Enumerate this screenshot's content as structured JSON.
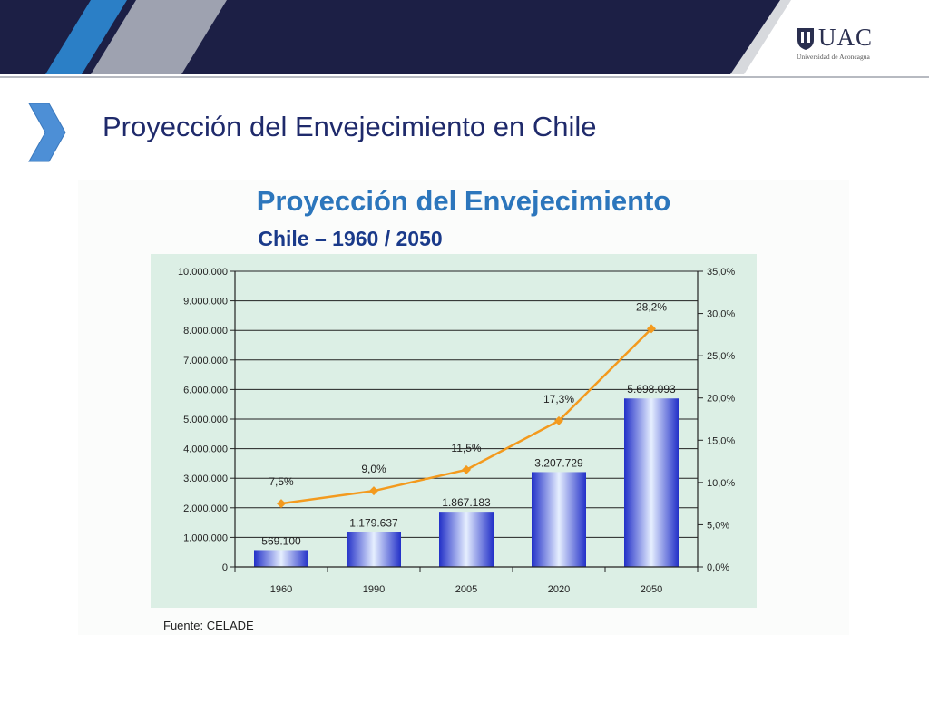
{
  "header": {
    "logo_text": "UAC",
    "logo_subtitle": "Universidad de Aconcagua",
    "colors": {
      "navy": "#1c1f45",
      "blue": "#2b7fc6",
      "grey": "#c9cbcf"
    }
  },
  "slide": {
    "title": "Proyección del Envejecimiento en Chile"
  },
  "figure": {
    "source": "Fuente:  CELADE"
  },
  "chart_data": {
    "type": "bar",
    "title": "Proyección del Envejecimiento",
    "subtitle": "Chile – 1960 / 2050",
    "categories": [
      "1960",
      "1990",
      "2005",
      "2020",
      "2050"
    ],
    "series": [
      {
        "type": "bar",
        "values": [
          569100,
          1179637,
          1867183,
          3207729,
          5698093
        ],
        "labels": [
          "569.100",
          "1.179.637",
          "1.867.183",
          "3.207.729",
          "5.698.093"
        ],
        "color": "#2a3fd6"
      },
      {
        "type": "line",
        "axis": "right",
        "values": [
          7.5,
          9.0,
          11.5,
          17.3,
          28.2
        ],
        "labels": [
          "7,5%",
          "9,0%",
          "11,5%",
          "17,3%",
          "28,2%"
        ],
        "color": "#f39a1e"
      }
    ],
    "y_left": {
      "range": [
        0,
        10000000
      ],
      "ticks": [
        "0",
        "1.000.000",
        "2.000.000",
        "3.000.000",
        "4.000.000",
        "5.000.000",
        "6.000.000",
        "7.000.000",
        "8.000.000",
        "9.000.000",
        "10.000.000"
      ]
    },
    "y_right": {
      "range": [
        0,
        35
      ],
      "ticks": [
        "0,0%",
        "5,0%",
        "10,0%",
        "15,0%",
        "20,0%",
        "25,0%",
        "30,0%",
        "35,0%"
      ]
    },
    "grid": true,
    "plot_background": "#dcefe5"
  }
}
